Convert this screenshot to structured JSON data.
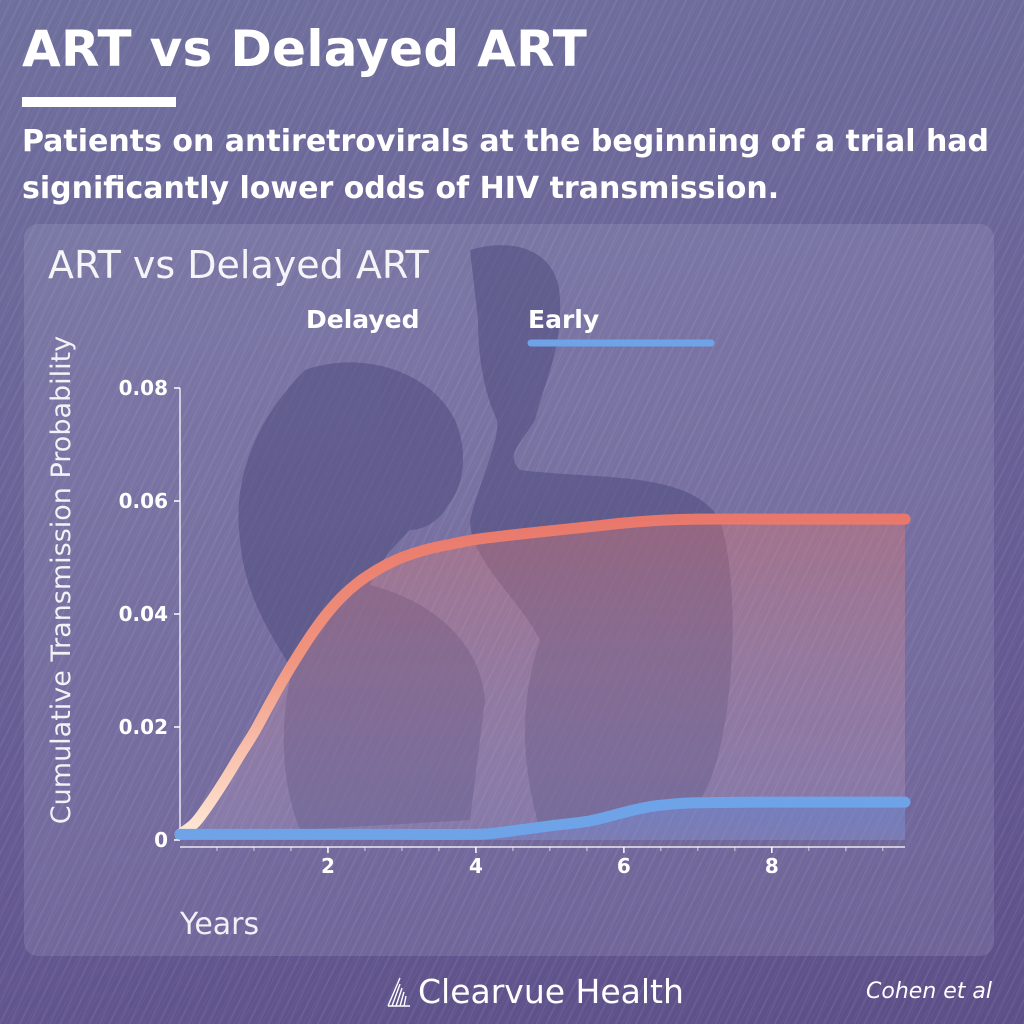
{
  "header": {
    "title": "ART vs Delayed ART",
    "subtitle": "Patients on antiretrovirals at the beginning of a trial had significantly lower odds of HIV transmission."
  },
  "chart_data": {
    "type": "line",
    "title": "ART vs Delayed ART",
    "xlabel": "Years",
    "ylabel": "Cumulative Transmission Probability",
    "xlim": [
      0,
      9.8
    ],
    "ylim": [
      0,
      0.08
    ],
    "xticks": [
      2,
      4,
      6,
      8
    ],
    "xtick_labels": [
      "2",
      "4",
      "6",
      "8"
    ],
    "yticks": [
      0,
      0.02,
      0.04,
      0.06,
      0.08
    ],
    "ytick_labels": [
      "0",
      "0.02",
      "0.04",
      "0.06",
      "0.08"
    ],
    "legend_position": "top",
    "grid": false,
    "series": [
      {
        "name": "Delayed",
        "color": "#e8786b",
        "x": [
          0,
          0.2,
          0.4,
          0.6,
          0.8,
          1.0,
          1.2,
          1.4,
          1.6,
          1.8,
          2.0,
          2.2,
          2.4,
          2.6,
          2.8,
          3.0,
          3.3,
          3.6,
          4.0,
          4.5,
          5.0,
          5.5,
          6.0,
          6.5,
          7.0,
          8.0,
          9.0,
          9.8
        ],
        "y": [
          0.001,
          0.003,
          0.0065,
          0.0105,
          0.0148,
          0.019,
          0.0238,
          0.0285,
          0.0328,
          0.0368,
          0.0403,
          0.0432,
          0.0455,
          0.0473,
          0.0488,
          0.05,
          0.0513,
          0.0522,
          0.0532,
          0.054,
          0.0547,
          0.0554,
          0.0561,
          0.0566,
          0.0568,
          0.0568,
          0.0568,
          0.0568
        ]
      },
      {
        "name": "Early",
        "color": "#6fa3e8",
        "x": [
          0,
          1.0,
          2.0,
          3.0,
          4.0,
          4.3,
          4.6,
          5.0,
          5.5,
          5.8,
          6.1,
          6.4,
          6.7,
          7.0,
          8.0,
          9.0,
          9.8
        ],
        "y": [
          0.001,
          0.001,
          0.001,
          0.001,
          0.001,
          0.0013,
          0.0018,
          0.0025,
          0.0033,
          0.0042,
          0.0052,
          0.006,
          0.0064,
          0.0066,
          0.0067,
          0.0067,
          0.0067
        ]
      }
    ]
  },
  "footer": {
    "brand": "Clearvue Health",
    "credit": "Cohen et al"
  }
}
